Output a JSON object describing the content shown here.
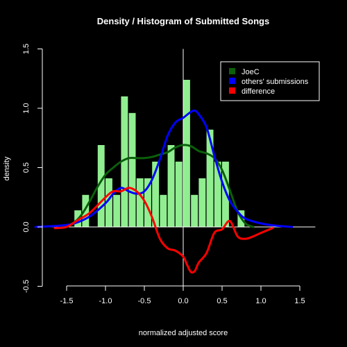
{
  "chart_data": {
    "type": "histogram+density",
    "title": "Density / Histogram of Submitted Songs",
    "xlabel": "normalized adjusted score",
    "ylabel": "density",
    "xlim": [
      -1.8,
      1.7
    ],
    "ylim": [
      -0.5,
      1.5
    ],
    "xticks": [
      -1.5,
      -1.0,
      -0.5,
      0.0,
      0.5,
      1.0,
      1.5
    ],
    "xtick_labels": [
      "-1.5",
      "-1.0",
      "-0.5",
      "0.0",
      "0.5",
      "1.0",
      "1.5"
    ],
    "yticks": [
      -0.5,
      0.0,
      0.5,
      1.0,
      1.5
    ],
    "ytick_labels": [
      "-0.5",
      "0.0",
      "0.5",
      "1.0",
      "1.5"
    ],
    "grid": false,
    "legend_position": "top-right",
    "histogram": {
      "color": "#90EE90",
      "bin_width": 0.0972,
      "bin_starts": [
        -1.4,
        -1.3,
        -1.2,
        -1.1,
        -1.0,
        -0.9,
        -0.8,
        -0.7,
        -0.6,
        -0.5,
        -0.4,
        -0.3,
        -0.2,
        -0.1,
        0.0,
        0.1,
        0.2,
        0.3,
        0.4,
        0.5,
        0.6,
        0.7,
        0.8
      ],
      "values": [
        0.14,
        0.27,
        0.0,
        0.69,
        0.41,
        0.27,
        1.1,
        0.96,
        0.41,
        0.41,
        0.55,
        0.27,
        0.69,
        0.55,
        1.24,
        0.27,
        0.41,
        0.82,
        0.55,
        0.55,
        0.0,
        0.14,
        0.0
      ]
    },
    "series": [
      {
        "name": "JoeC",
        "color": "#0b5f0b",
        "x": [
          -1.6,
          -1.5,
          -1.4,
          -1.3,
          -1.2,
          -1.1,
          -1.0,
          -0.9,
          -0.8,
          -0.7,
          -0.6,
          -0.5,
          -0.4,
          -0.3,
          -0.2,
          -0.1,
          0.0,
          0.1,
          0.2,
          0.3,
          0.4,
          0.5,
          0.6,
          0.7,
          0.8,
          0.9
        ],
        "y": [
          0.0,
          0.01,
          0.04,
          0.11,
          0.22,
          0.34,
          0.44,
          0.5,
          0.55,
          0.58,
          0.58,
          0.58,
          0.59,
          0.61,
          0.63,
          0.67,
          0.69,
          0.68,
          0.64,
          0.62,
          0.58,
          0.48,
          0.31,
          0.13,
          0.03,
          0.0
        ]
      },
      {
        "name": "others' submissions",
        "color": "#0000ff",
        "x": [
          -1.9,
          -1.6,
          -1.4,
          -1.2,
          -1.0,
          -0.9,
          -0.8,
          -0.7,
          -0.6,
          -0.5,
          -0.4,
          -0.3,
          -0.2,
          -0.1,
          0.0,
          0.1,
          0.15,
          0.2,
          0.3,
          0.4,
          0.5,
          0.6,
          0.7,
          0.8,
          1.0,
          1.2,
          1.4
        ],
        "y": [
          0.0,
          0.01,
          0.03,
          0.09,
          0.2,
          0.28,
          0.33,
          0.3,
          0.28,
          0.3,
          0.4,
          0.57,
          0.77,
          0.88,
          0.92,
          0.97,
          0.98,
          0.95,
          0.84,
          0.6,
          0.38,
          0.22,
          0.13,
          0.07,
          0.03,
          0.01,
          0.0
        ]
      },
      {
        "name": "difference",
        "color": "#ff0000",
        "x": [
          -1.65,
          -1.5,
          -1.35,
          -1.2,
          -1.0,
          -0.9,
          -0.8,
          -0.7,
          -0.6,
          -0.5,
          -0.4,
          -0.3,
          -0.2,
          -0.1,
          0.0,
          0.05,
          0.1,
          0.15,
          0.2,
          0.3,
          0.4,
          0.5,
          0.6,
          0.7,
          0.8,
          0.9,
          1.0,
          1.15
        ],
        "y": [
          -0.01,
          0.0,
          0.06,
          0.12,
          0.25,
          0.3,
          0.3,
          0.33,
          0.3,
          0.22,
          0.08,
          -0.1,
          -0.18,
          -0.2,
          -0.25,
          -0.32,
          -0.38,
          -0.37,
          -0.3,
          -0.22,
          -0.05,
          -0.02,
          0.05,
          -0.08,
          -0.1,
          -0.08,
          -0.05,
          -0.01
        ]
      }
    ]
  }
}
